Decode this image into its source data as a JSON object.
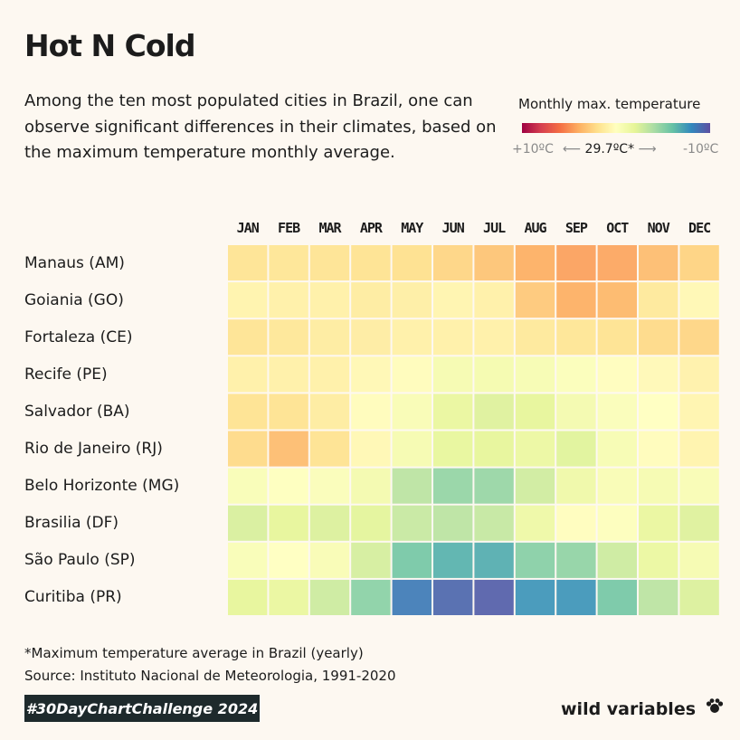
{
  "header": {
    "title": "Hot N Cold",
    "subtitle": "Among the ten most populated cities in Brazil, one can observe significant differences in their climates, based on the maximum temperature monthly average."
  },
  "legend": {
    "title": "Monthly max. temperature",
    "hot_label": "+10ºC",
    "mid_label": "29.7ºC*",
    "cold_label": "-10ºC",
    "arrow_left": "⟵",
    "arrow_right": "⟶"
  },
  "chart_data": {
    "type": "heatmap",
    "title": "Hot N Cold",
    "value_description": "Deviation of monthly max. temperature average from the Brazil yearly average (29.7ºC), ºC; positive = hotter",
    "scale": {
      "min": -10,
      "max": 10,
      "center": 0,
      "palette": "Spectral"
    },
    "months": [
      "JAN",
      "FEB",
      "MAR",
      "APR",
      "MAY",
      "JUN",
      "JUL",
      "AUG",
      "SEP",
      "OCT",
      "NOV",
      "DEC"
    ],
    "cities": [
      "Manaus (AM)",
      "Goiania (GO)",
      "Fortaleza (CE)",
      "Recife (PE)",
      "Salvador (BA)",
      "Rio de Janeiro (RJ)",
      "Belo Horizonte (MG)",
      "Brasilia (DF)",
      "São Paulo (SP)",
      "Curitiba (PR)"
    ],
    "values": [
      [
        1.8,
        1.7,
        1.8,
        1.9,
        2.0,
        2.5,
        3.2,
        4.0,
        4.5,
        4.3,
        3.5,
        2.6
      ],
      [
        0.8,
        1.0,
        1.0,
        1.3,
        1.1,
        0.7,
        1.0,
        3.0,
        4.0,
        3.7,
        1.5,
        0.5
      ],
      [
        1.8,
        1.6,
        1.3,
        1.2,
        1.0,
        1.0,
        1.0,
        1.5,
        1.7,
        1.9,
        2.3,
        2.5
      ],
      [
        1.0,
        1.0,
        1.0,
        0.5,
        0.2,
        -0.8,
        -0.9,
        -0.7,
        -0.3,
        0.1,
        0.4,
        0.9
      ],
      [
        1.9,
        1.9,
        1.3,
        0.2,
        -0.6,
        -1.8,
        -2.3,
        -2.0,
        -1.0,
        -0.4,
        0.0,
        0.7
      ],
      [
        2.3,
        3.5,
        1.9,
        0.5,
        -0.8,
        -1.9,
        -2.0,
        -1.6,
        -2.2,
        -0.7,
        0.2,
        0.8
      ],
      [
        -0.5,
        -0.1,
        -0.4,
        -1.0,
        -3.5,
        -4.7,
        -4.6,
        -2.8,
        -1.3,
        -0.6,
        -0.8,
        -0.6
      ],
      [
        -2.5,
        -2.0,
        -2.4,
        -2.1,
        -3.1,
        -3.5,
        -3.2,
        -1.4,
        0.1,
        -0.2,
        -1.8,
        -2.3
      ],
      [
        -0.5,
        0.0,
        -0.6,
        -2.6,
        -5.6,
        -6.6,
        -6.8,
        -5.1,
        -4.8,
        -2.9,
        -1.7,
        -0.8
      ],
      [
        -2.0,
        -1.8,
        -2.9,
        -5.0,
        -8.5,
        -9.2,
        -9.5,
        -7.6,
        -7.6,
        -5.6,
        -3.5,
        -2.4
      ]
    ]
  },
  "footer": {
    "note": "*Maximum temperature average in Brazil (yearly)",
    "source": "Source: Instituto Nacional de Meteorologia, 1991-2020",
    "badge": "#30DayChartChallenge 2024",
    "brand": "wild variables",
    "brand_icon": "paw-icon"
  }
}
